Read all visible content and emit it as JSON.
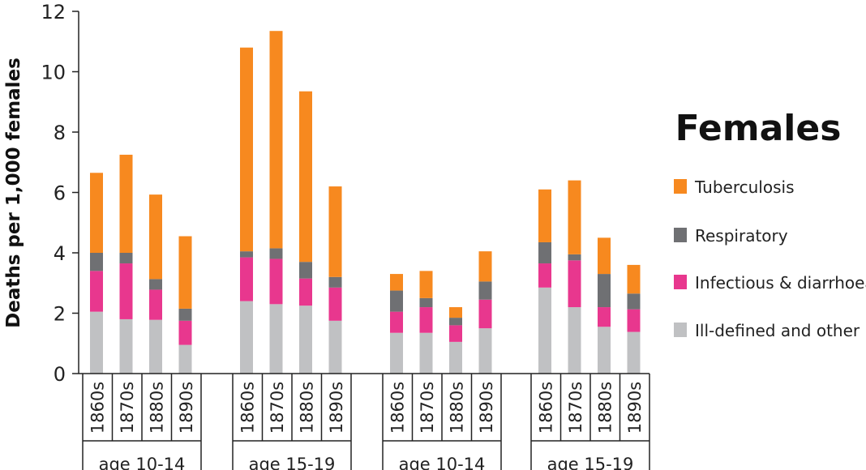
{
  "chart_data": {
    "type": "bar",
    "stacked": true,
    "title": "Females",
    "ylabel": "Deaths per 1,000 females",
    "ylim": [
      0,
      12
    ],
    "yticks": [
      0,
      2,
      4,
      6,
      8,
      10,
      12
    ],
    "groups": [
      {
        "label": "age 10-14",
        "categories": [
          "1860s",
          "1870s",
          "1880s",
          "1890s"
        ]
      },
      {
        "label": "age 15-19",
        "categories": [
          "1860s",
          "1870s",
          "1880s",
          "1890s"
        ]
      },
      {
        "label": "age 10-14",
        "categories": [
          "1860s",
          "1870s",
          "1880s",
          "1890s"
        ]
      },
      {
        "label": "age 15-19",
        "categories": [
          "1860s",
          "1870s",
          "1880s",
          "1890s"
        ]
      }
    ],
    "series": [
      {
        "name": "Ill-defined and other",
        "color": "#c0c1c3",
        "values": [
          2.05,
          1.8,
          1.78,
          0.95,
          2.4,
          2.3,
          2.25,
          1.75,
          1.35,
          1.35,
          1.05,
          1.5,
          2.85,
          2.2,
          1.55,
          1.38
        ]
      },
      {
        "name": "Infectious & diarrhoea",
        "color": "#e8378e",
        "values": [
          1.35,
          1.85,
          1.0,
          0.8,
          1.45,
          1.5,
          0.9,
          1.1,
          0.7,
          0.85,
          0.55,
          0.95,
          0.8,
          1.55,
          0.65,
          0.75
        ]
      },
      {
        "name": "Respiratory",
        "color": "#6f7073",
        "values": [
          0.6,
          0.35,
          0.35,
          0.4,
          0.2,
          0.35,
          0.55,
          0.35,
          0.7,
          0.3,
          0.25,
          0.6,
          0.7,
          0.2,
          1.1,
          0.52
        ]
      },
      {
        "name": "Tuberculosis",
        "color": "#f7891f",
        "values": [
          2.65,
          3.25,
          2.8,
          2.4,
          6.75,
          7.2,
          5.65,
          3.0,
          0.55,
          0.9,
          0.35,
          1.0,
          1.75,
          2.45,
          1.2,
          0.95
        ]
      }
    ],
    "legend": {
      "placement": "right",
      "order": [
        "Tuberculosis",
        "Respiratory",
        "Infectious & diarrhoea",
        "Ill-defined and other"
      ]
    }
  }
}
